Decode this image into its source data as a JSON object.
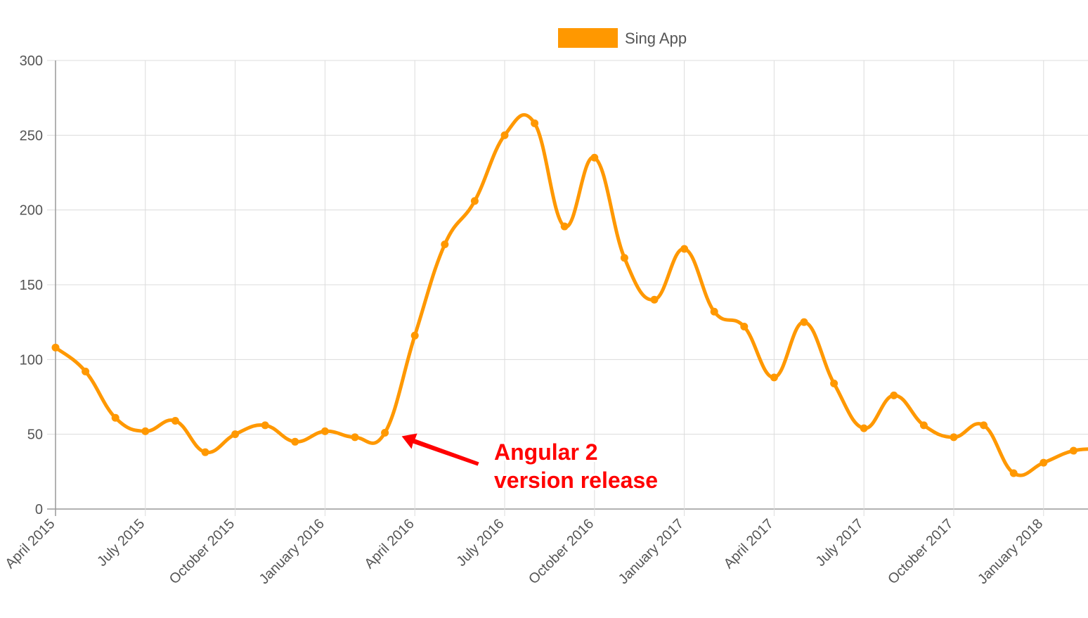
{
  "chart_data": {
    "type": "line",
    "title": "",
    "xlabel": "",
    "ylabel": "",
    "ylim": [
      0,
      300
    ],
    "yticks": [
      0,
      50,
      100,
      150,
      200,
      250,
      300
    ],
    "grid": true,
    "legend_position": "top-center",
    "x_range": [
      "2015-04",
      "2018-04"
    ],
    "x_tick_labels": [
      "April 2015",
      "July 2015",
      "October 2015",
      "January 2016",
      "April 2016",
      "July 2016",
      "October 2016",
      "January 2017",
      "April 2017",
      "July 2017",
      "October 2017",
      "January 2018"
    ],
    "x": [
      "2015-04",
      "2015-05",
      "2015-06",
      "2015-07",
      "2015-08",
      "2015-09",
      "2015-10",
      "2015-11",
      "2015-12",
      "2016-01",
      "2016-02",
      "2016-03",
      "2016-04",
      "2016-05",
      "2016-06",
      "2016-07",
      "2016-08",
      "2016-09",
      "2016-10",
      "2016-11",
      "2016-12",
      "2017-01",
      "2017-02",
      "2017-03",
      "2017-04",
      "2017-05",
      "2017-06",
      "2017-07",
      "2017-08",
      "2017-09",
      "2017-10",
      "2017-11",
      "2017-12",
      "2018-01",
      "2018-02",
      "2018-03"
    ],
    "series": [
      {
        "name": "Sing App",
        "color": "#ff9800",
        "values": [
          108,
          92,
          61,
          52,
          59,
          38,
          50,
          56,
          45,
          52,
          48,
          51,
          116,
          177,
          206,
          250,
          258,
          189,
          235,
          168,
          140,
          174,
          132,
          122,
          88,
          125,
          84,
          54,
          76,
          56,
          48,
          56,
          24,
          31,
          39,
          40
        ]
      }
    ],
    "annotation": {
      "text_lines": [
        "Angular 2",
        "version release"
      ],
      "points_to": "2016-03",
      "color": "#ff0000"
    }
  }
}
